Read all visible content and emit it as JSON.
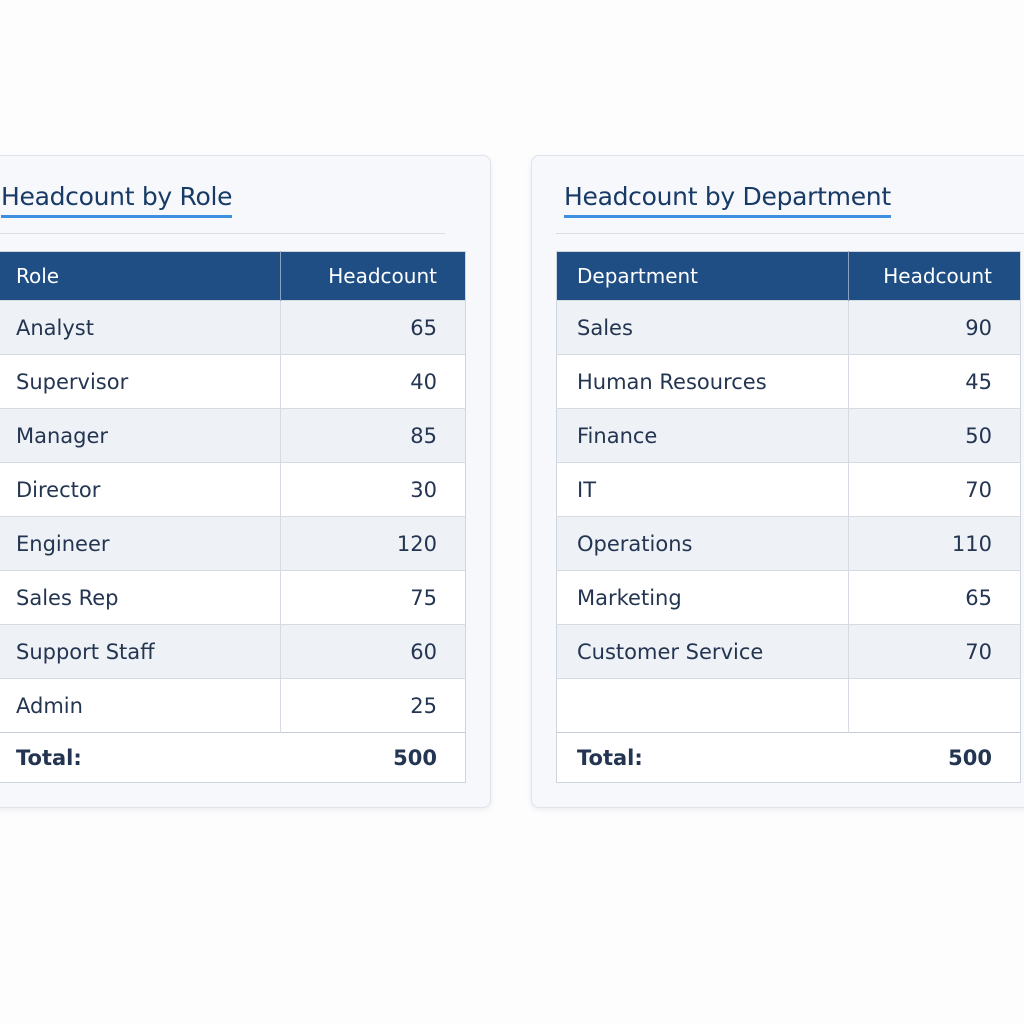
{
  "role_table": {
    "title": "Headcount by Role",
    "columns": [
      "Role",
      "Headcount"
    ],
    "rows": [
      {
        "label": "Analyst",
        "value": "65"
      },
      {
        "label": "Supervisor",
        "value": "40"
      },
      {
        "label": "Manager",
        "value": "85"
      },
      {
        "label": "Director",
        "value": "30"
      },
      {
        "label": "Engineer",
        "value": "120"
      },
      {
        "label": "Sales Rep",
        "value": "75"
      },
      {
        "label": "Support Staff",
        "value": "60"
      },
      {
        "label": "Admin",
        "value": "25"
      }
    ],
    "total_label": "Total:",
    "total_value": "500"
  },
  "department_table": {
    "title": "Headcount by Department",
    "columns": [
      "Department",
      "Headcount"
    ],
    "rows": [
      {
        "label": "Sales",
        "value": "90"
      },
      {
        "label": "Human Resources",
        "value": "45"
      },
      {
        "label": "Finance",
        "value": "50"
      },
      {
        "label": "IT",
        "value": "70"
      },
      {
        "label": "Operations",
        "value": "110"
      },
      {
        "label": "Marketing",
        "value": "65"
      },
      {
        "label": "Customer Service",
        "value": "70"
      },
      {
        "label": "",
        "value": ""
      }
    ],
    "total_label": "Total:",
    "total_value": "500"
  },
  "colors": {
    "header_bg": "#1f4e85",
    "title_text": "#173a66",
    "title_underline": "#3d8fe0",
    "alt_row_bg": "#eef1f6"
  }
}
